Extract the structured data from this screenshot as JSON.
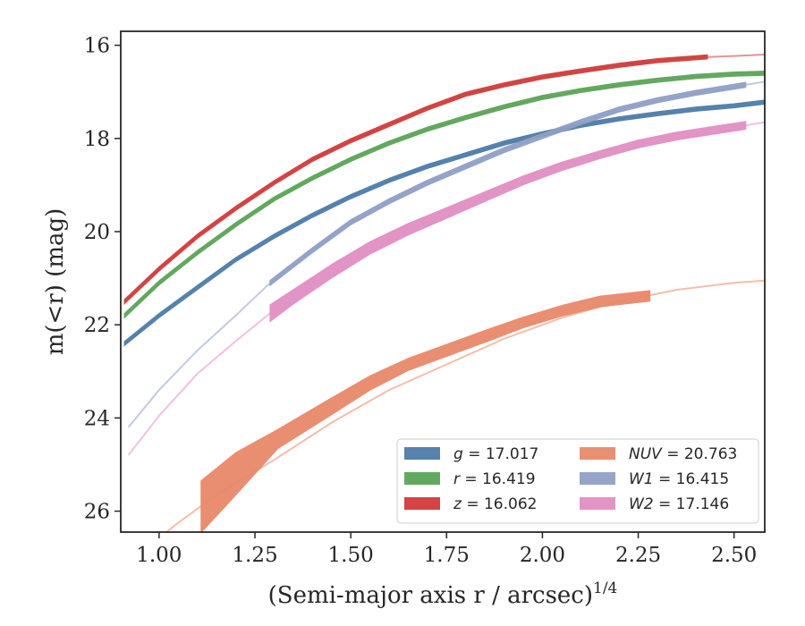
{
  "chart_data": {
    "type": "line",
    "title": "",
    "xlabel": "(Semi-major axis r / arcsec)",
    "xlabel_exponent": "1/4",
    "ylabel": "m(<r) (mag)",
    "xlim": [
      0.9,
      2.58
    ],
    "ylim": [
      26.45,
      15.7
    ],
    "y_inverted": true,
    "grid": false,
    "legend_position": "lower right",
    "x_ticks": [
      "1.00",
      "1.25",
      "1.50",
      "1.75",
      "2.00",
      "2.25",
      "2.50"
    ],
    "y_ticks": [
      "16",
      "18",
      "20",
      "22",
      "24",
      "26"
    ],
    "series": [
      {
        "name": "g = 17.017",
        "label_var": "g",
        "label_val": "17.017",
        "color": "#4c7ca8",
        "band": {
          "x": [
            0.91,
            1.0,
            1.1,
            1.2,
            1.3,
            1.4,
            1.5,
            1.6,
            1.7,
            1.8,
            1.9,
            2.0,
            2.1,
            2.2,
            2.3,
            2.4,
            2.5,
            2.58
          ],
          "y": [
            22.4,
            21.8,
            21.2,
            20.6,
            20.1,
            19.65,
            19.25,
            18.9,
            18.6,
            18.35,
            18.1,
            17.9,
            17.72,
            17.58,
            17.47,
            17.37,
            17.3,
            17.22
          ],
          "w": 0.08
        }
      },
      {
        "name": "r = 16.419",
        "label_var": "r",
        "label_val": "16.419",
        "color": "#5aa457",
        "band": {
          "x": [
            0.91,
            1.0,
            1.1,
            1.2,
            1.3,
            1.4,
            1.5,
            1.6,
            1.7,
            1.8,
            1.9,
            2.0,
            2.1,
            2.2,
            2.3,
            2.4,
            2.5,
            2.58
          ],
          "y": [
            21.8,
            21.1,
            20.45,
            19.85,
            19.3,
            18.85,
            18.45,
            18.1,
            17.8,
            17.55,
            17.32,
            17.12,
            16.97,
            16.85,
            16.75,
            16.67,
            16.62,
            16.6
          ],
          "w": 0.08
        }
      },
      {
        "name": "z = 16.062",
        "label_var": "z",
        "label_val": "16.062",
        "color": "#d03b3b",
        "band": {
          "x": [
            0.91,
            1.0,
            1.1,
            1.2,
            1.3,
            1.4,
            1.5,
            1.6,
            1.7,
            1.8,
            1.9,
            2.0,
            2.1,
            2.2,
            2.3,
            2.43
          ],
          "y": [
            21.5,
            20.8,
            20.1,
            19.5,
            18.95,
            18.45,
            18.05,
            17.7,
            17.35,
            17.05,
            16.85,
            16.68,
            16.55,
            16.43,
            16.33,
            16.25
          ],
          "w": 0.08
        },
        "ext": {
          "x": [
            2.43,
            2.5,
            2.58
          ],
          "y": [
            16.25,
            16.23,
            16.2
          ]
        }
      },
      {
        "name": "NUV = 20.763",
        "label_var": "NUV",
        "label_val": "20.763",
        "color": "#e8896a",
        "band": {
          "x": [
            1.11,
            1.2,
            1.31,
            1.45,
            1.55,
            1.65,
            1.75,
            1.85,
            1.95,
            2.05,
            2.15,
            2.28
          ],
          "y": [
            25.9,
            25.2,
            24.45,
            23.75,
            23.25,
            22.85,
            22.55,
            22.25,
            21.95,
            21.7,
            21.5,
            21.38
          ],
          "w": [
            1.1,
            0.9,
            0.4,
            0.35,
            0.3,
            0.25,
            0.25,
            0.25,
            0.22,
            0.22,
            0.22,
            0.22
          ]
        },
        "ext": {
          "x": [
            0.95,
            1.05,
            1.15,
            1.3,
            1.45,
            1.6,
            1.75,
            1.9,
            2.05,
            2.2,
            2.35,
            2.5,
            2.58
          ],
          "y": [
            26.9,
            26.25,
            25.65,
            24.9,
            24.1,
            23.4,
            22.85,
            22.3,
            21.85,
            21.5,
            21.25,
            21.1,
            21.05
          ]
        }
      },
      {
        "name": "W1 = 16.415",
        "label_var": "W1",
        "label_val": "16.415",
        "color": "#8f9fc5",
        "band": {
          "x": [
            1.29,
            1.4,
            1.5,
            1.6,
            1.7,
            1.8,
            1.9,
            2.0,
            2.1,
            2.2,
            2.3,
            2.4,
            2.53
          ],
          "y": [
            21.1,
            20.4,
            19.8,
            19.35,
            18.95,
            18.6,
            18.25,
            17.95,
            17.65,
            17.38,
            17.18,
            17.02,
            16.85
          ],
          "w": 0.1
        },
        "ext": {
          "x": [
            0.92,
            1.0,
            1.1,
            1.2,
            1.29
          ],
          "y": [
            24.2,
            23.4,
            22.55,
            21.8,
            21.1
          ],
          "ext2": {
            "x": [
              2.53,
              2.58
            ],
            "y": [
              16.85,
              16.78
            ]
          }
        }
      },
      {
        "name": "W2 = 17.146",
        "label_var": "W2",
        "label_val": "17.146",
        "color": "#e08fc2",
        "band": {
          "x": [
            1.29,
            1.35,
            1.45,
            1.55,
            1.65,
            1.75,
            1.85,
            1.95,
            2.05,
            2.15,
            2.25,
            2.35,
            2.45,
            2.53
          ],
          "y": [
            21.75,
            21.4,
            20.85,
            20.35,
            19.95,
            19.6,
            19.25,
            18.9,
            18.6,
            18.35,
            18.12,
            17.95,
            17.82,
            17.72
          ],
          "w": [
            0.35,
            0.3,
            0.28,
            0.26,
            0.24,
            0.22,
            0.2,
            0.18,
            0.17,
            0.16,
            0.16,
            0.16,
            0.16,
            0.16
          ]
        },
        "ext": {
          "x": [
            0.92,
            1.0,
            1.1,
            1.2,
            1.29
          ],
          "y": [
            24.8,
            23.95,
            23.05,
            22.35,
            21.75
          ],
          "ext2": {
            "x": [
              2.53,
              2.58
            ],
            "y": [
              17.72,
              17.65
            ]
          }
        }
      }
    ]
  }
}
